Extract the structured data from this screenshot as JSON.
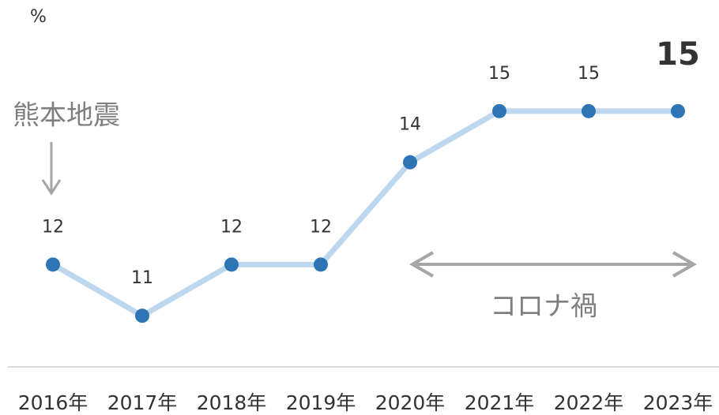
{
  "chart_data": {
    "type": "line",
    "y_label": "%",
    "categories": [
      "2016年",
      "2017年",
      "2018年",
      "2019年",
      "2020年",
      "2021年",
      "2022年",
      "2023年"
    ],
    "series": [
      {
        "name": "",
        "color": "#bdd7ee",
        "marker_color": "#2e75b6",
        "values": [
          12,
          11,
          12,
          12,
          14,
          15,
          15,
          15
        ]
      }
    ],
    "ylim": [
      10,
      16
    ],
    "annotations": [
      "熊本地震",
      "コロナ禍"
    ]
  }
}
